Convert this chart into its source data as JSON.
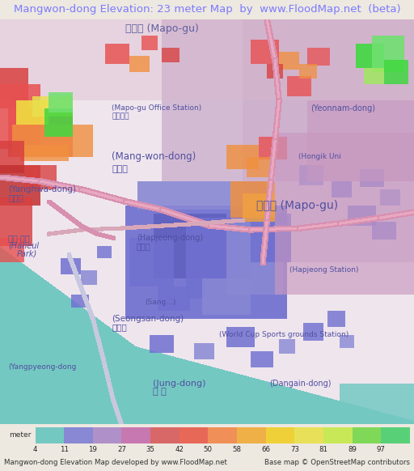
{
  "title": "Mangwon-dong Elevation: 23 meter Map  by  www.FloodMap.net  (beta)",
  "title_color": "#7b7bff",
  "title_fontsize": 9.5,
  "bg_color": "#ede8e0",
  "colorbar_values": [
    4,
    11,
    19,
    27,
    35,
    42,
    50,
    58,
    66,
    73,
    81,
    89,
    97
  ],
  "colorbar_colors": [
    "#74c8c2",
    "#8888d4",
    "#b090c8",
    "#c878b0",
    "#d86868",
    "#e86858",
    "#f09058",
    "#f0b048",
    "#f0d038",
    "#e8e058",
    "#c8e858",
    "#80d858",
    "#58d078"
  ],
  "footer_left": "Mangwon-dong Elevation Map developed by www.FloodMap.net",
  "footer_right": "Base map © OpenStreetMap contributors",
  "footer_fontsize": 6.2,
  "ylabel_text": "meter"
}
